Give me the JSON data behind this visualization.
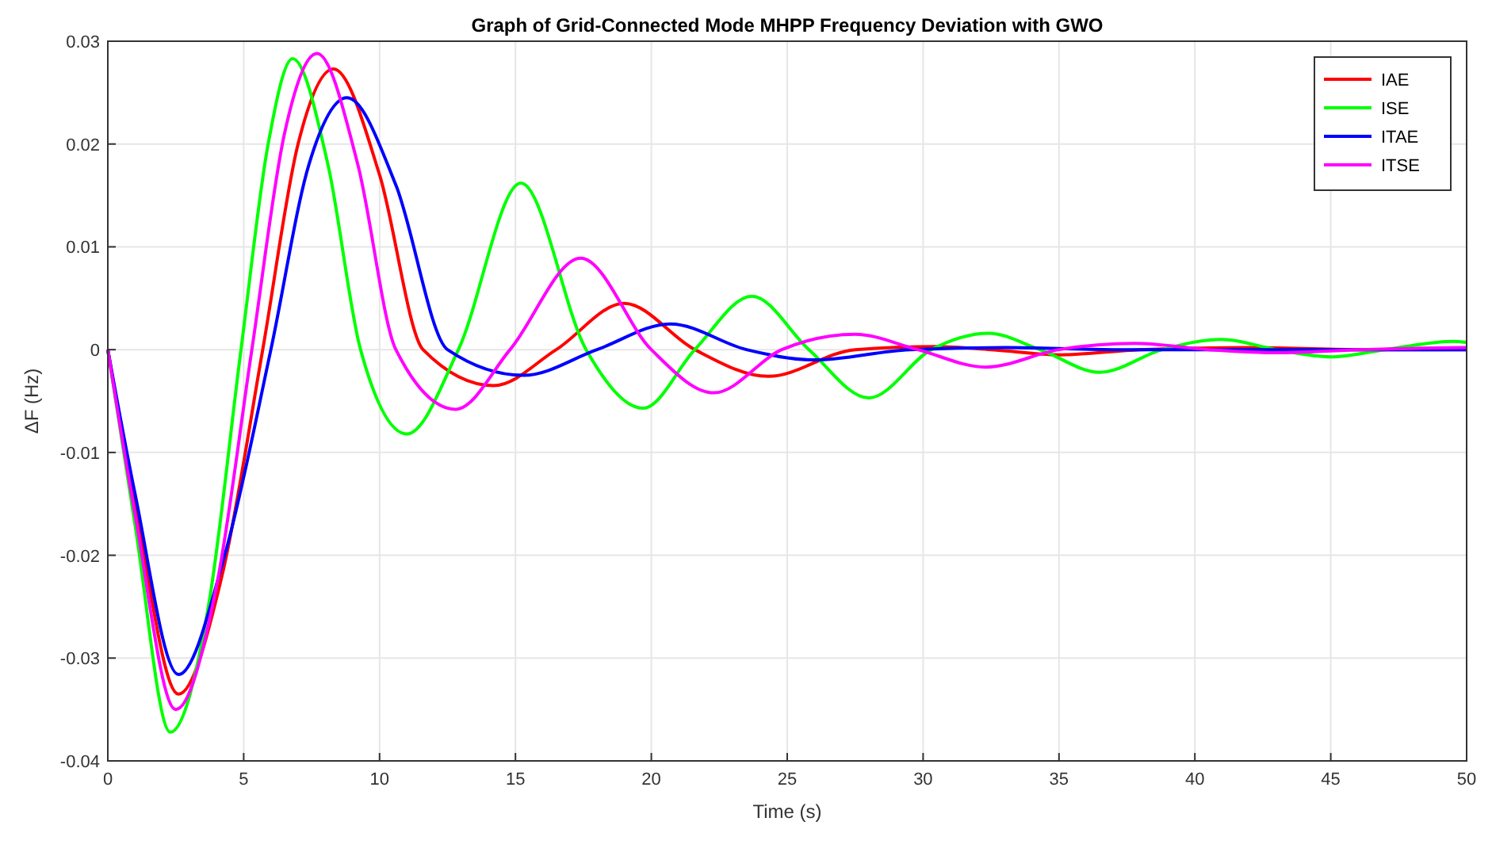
{
  "chart_data": {
    "type": "line",
    "title": "Graph of Grid-Connected Mode MHPP Frequency Deviation with GWO",
    "xlabel": "Time (s)",
    "ylabel": "ΔF (Hz)",
    "xlim": [
      0,
      50
    ],
    "ylim": [
      -0.04,
      0.03
    ],
    "xticks": [
      0,
      5,
      10,
      15,
      20,
      25,
      30,
      35,
      40,
      45,
      50
    ],
    "yticks": [
      -0.04,
      -0.03,
      -0.02,
      -0.01,
      0,
      0.01,
      0.02,
      0.03
    ],
    "grid": true,
    "legend": "top right",
    "line_style": "solid",
    "marker": "none",
    "series": [
      {
        "name": "IAE",
        "color": "#ff0000",
        "x": [
          0,
          1,
          2.6,
          4.2,
          5.7,
          7,
          8.3,
          10,
          11.6,
          14.2,
          16.5,
          19,
          21.6,
          24.3,
          27.5,
          30.5,
          32.5,
          35,
          38,
          42,
          46,
          50
        ],
        "values": [
          0,
          -0.015,
          -0.0335,
          -0.022,
          0,
          0.02,
          0.0273,
          0.017,
          0,
          -0.0035,
          0,
          0.0045,
          0,
          -0.0026,
          0,
          0.0003,
          0,
          -0.0005,
          0,
          0.0002,
          0,
          0
        ]
      },
      {
        "name": "ISE",
        "color": "#00ff00",
        "x": [
          0,
          1,
          2.3,
          3.7,
          4.9,
          5.9,
          6.8,
          8.1,
          9.3,
          11,
          12.9,
          15.2,
          17.6,
          19.7,
          21.6,
          23.7,
          25.8,
          28,
          30.3,
          32.4,
          34.3,
          36.5,
          38.8,
          41,
          43,
          45,
          47,
          49.5,
          50
        ],
        "values": [
          0,
          -0.017,
          -0.0372,
          -0.025,
          0,
          0.02,
          0.0283,
          0.018,
          0,
          -0.0082,
          0,
          0.0162,
          0,
          -0.0057,
          0,
          0.0052,
          0,
          -0.0047,
          0,
          0.0016,
          0,
          -0.0022,
          0,
          0.001,
          0,
          -0.0007,
          0,
          0.0008,
          0.0007
        ]
      },
      {
        "name": "ITAE",
        "color": "#0000ff",
        "x": [
          0,
          1,
          2.6,
          4.3,
          6,
          7.4,
          8.8,
          10.6,
          12.5,
          15.3,
          18,
          20.7,
          23.5,
          26,
          29.5,
          33,
          37,
          42,
          50
        ],
        "values": [
          0,
          -0.014,
          -0.0316,
          -0.02,
          0,
          0.018,
          0.0245,
          0.016,
          0,
          -0.0025,
          0,
          0.0025,
          0,
          -0.001,
          0,
          0.0002,
          0,
          0,
          0
        ]
      },
      {
        "name": "ITSE",
        "color": "#ff00ff",
        "x": [
          0,
          1,
          2.5,
          4,
          5.3,
          6.5,
          7.7,
          9.2,
          10.6,
          12.8,
          14.8,
          17.4,
          20,
          22.3,
          24.8,
          27.5,
          29.8,
          32.3,
          35,
          37.8,
          40.5,
          43,
          46,
          50
        ],
        "values": [
          0,
          -0.016,
          -0.035,
          -0.023,
          0,
          0.021,
          0.0288,
          0.018,
          0,
          -0.0058,
          0,
          0.0089,
          0,
          -0.0042,
          0,
          0.0015,
          0,
          -0.0017,
          0,
          0.0006,
          0,
          -0.0003,
          0,
          0.0002
        ]
      }
    ]
  }
}
